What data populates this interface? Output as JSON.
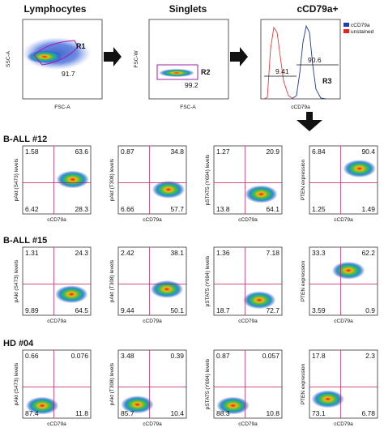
{
  "top": {
    "lymphocytes": {
      "title": "Lymphocytes",
      "xlabel": "FSC-A",
      "ylabel": "SSC-A",
      "gate_name": "R1",
      "percent": "91.7"
    },
    "singlets": {
      "title": "Singlets",
      "xlabel": "FSC-A",
      "ylabel": "FSC-W",
      "gate_name": "R2",
      "percent": "99.2"
    },
    "cd79a": {
      "title": "cCD79a+",
      "xlabel": "cCD79a",
      "gate_name": "R3",
      "neg_percent": "9.41",
      "pos_percent": "90.6",
      "legend": [
        "cCD79a",
        "unstained"
      ]
    }
  },
  "chart_data": {
    "type": "scatter",
    "x_axis_label": "cCD79a",
    "y_axis_labels": [
      "pAkt (S473) levels",
      "pAkt (T308) levels",
      "pSTAT5 (Y694) levels",
      "PTEN expression"
    ],
    "quadrant_order": [
      "top-left",
      "top-right",
      "bottom-left",
      "bottom-right"
    ],
    "groups": [
      {
        "label": "B-ALL #12",
        "quadrants": [
          [
            1.58,
            63.6,
            6.42,
            28.3
          ],
          [
            0.87,
            34.8,
            6.66,
            57.7
          ],
          [
            1.27,
            20.9,
            13.8,
            64.1
          ],
          [
            6.84,
            90.4,
            1.25,
            1.49
          ]
        ]
      },
      {
        "label": "B-ALL #15",
        "quadrants": [
          [
            1.31,
            24.3,
            9.89,
            64.5
          ],
          [
            2.42,
            38.1,
            9.44,
            50.1
          ],
          [
            1.36,
            7.18,
            18.7,
            72.7
          ],
          [
            33.3,
            62.2,
            3.59,
            0.9
          ]
        ]
      },
      {
        "label": "HD #04",
        "quadrants": [
          [
            0.66,
            0.076,
            87.4,
            11.8
          ],
          [
            3.48,
            0.39,
            85.7,
            10.4
          ],
          [
            0.87,
            0.057,
            88.3,
            10.8
          ],
          [
            17.8,
            2.3,
            73.1,
            6.78
          ]
        ]
      }
    ]
  }
}
